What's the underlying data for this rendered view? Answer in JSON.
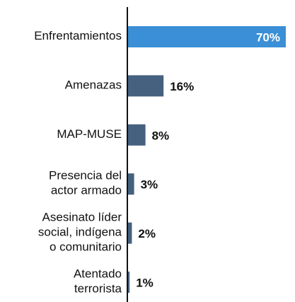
{
  "chart_data": {
    "type": "bar",
    "orientation": "horizontal",
    "categories": [
      "Enfrentamientos",
      "Amenazas",
      "MAP-MUSE",
      "Presencia del\nactor armado",
      "Asesinato líder\nsocial, indígena\no comunitario",
      "Atentado\nterrorista"
    ],
    "values": [
      70,
      16,
      8,
      3,
      2,
      1
    ],
    "value_labels": [
      "70%",
      "16%",
      "8%",
      "3%",
      "2%",
      "1%"
    ],
    "colors": [
      "#3a8fd6",
      "#46607f",
      "#46607f",
      "#46607f",
      "#46607f",
      "#46607f"
    ],
    "xlim": [
      0,
      70
    ]
  }
}
